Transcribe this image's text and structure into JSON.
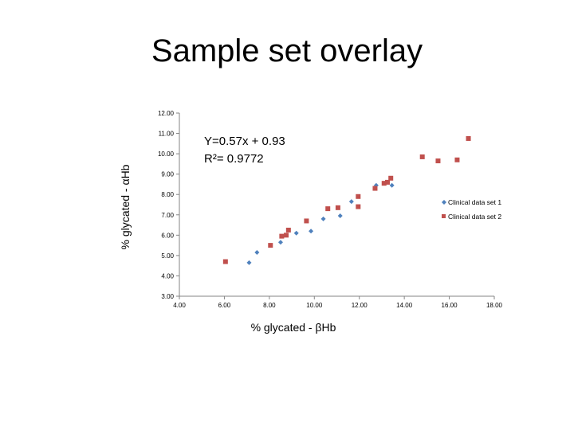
{
  "slide": {
    "title": "Sample set overlay"
  },
  "chart_data": {
    "type": "scatter",
    "title": "",
    "xlabel": "% glycated - βHb",
    "ylabel": "% glycated - αHb",
    "xlim": [
      4,
      18
    ],
    "ylim": [
      3,
      12
    ],
    "x_ticks": [
      "4.00",
      "6.00",
      "8.00",
      "10.00",
      "12.00",
      "14.00",
      "16.00",
      "18.00"
    ],
    "y_ticks": [
      "3.00",
      "4.00",
      "5.00",
      "6.00",
      "7.00",
      "8.00",
      "9.00",
      "10.00",
      "11.00",
      "12.00"
    ],
    "grid": false,
    "legend_position": "right",
    "annotation": {
      "line1": "Y=0.57x + 0.93",
      "line2": "R²= 0.9772"
    },
    "series": [
      {
        "name": "Clinical data set 1",
        "marker": "diamond",
        "color": "#4f81bd",
        "points": [
          [
            7.1,
            4.65
          ],
          [
            7.45,
            5.15
          ],
          [
            8.5,
            5.65
          ],
          [
            9.2,
            6.1
          ],
          [
            9.85,
            6.2
          ],
          [
            10.4,
            6.8
          ],
          [
            11.15,
            6.95
          ],
          [
            11.65,
            7.65
          ],
          [
            12.75,
            8.45
          ],
          [
            13.45,
            8.45
          ]
        ]
      },
      {
        "name": "Clinical data set 2",
        "marker": "square",
        "color": "#c0504d",
        "points": [
          [
            6.05,
            4.7
          ],
          [
            8.05,
            5.5
          ],
          [
            8.55,
            5.95
          ],
          [
            8.75,
            6.0
          ],
          [
            8.85,
            6.25
          ],
          [
            9.65,
            6.7
          ],
          [
            10.6,
            7.3
          ],
          [
            11.05,
            7.35
          ],
          [
            11.95,
            7.4
          ],
          [
            11.95,
            7.9
          ],
          [
            12.7,
            8.3
          ],
          [
            13.1,
            8.55
          ],
          [
            13.25,
            8.6
          ],
          [
            13.4,
            8.8
          ],
          [
            14.8,
            9.85
          ],
          [
            15.5,
            9.65
          ],
          [
            16.35,
            9.7
          ],
          [
            16.85,
            10.75
          ]
        ]
      }
    ]
  }
}
